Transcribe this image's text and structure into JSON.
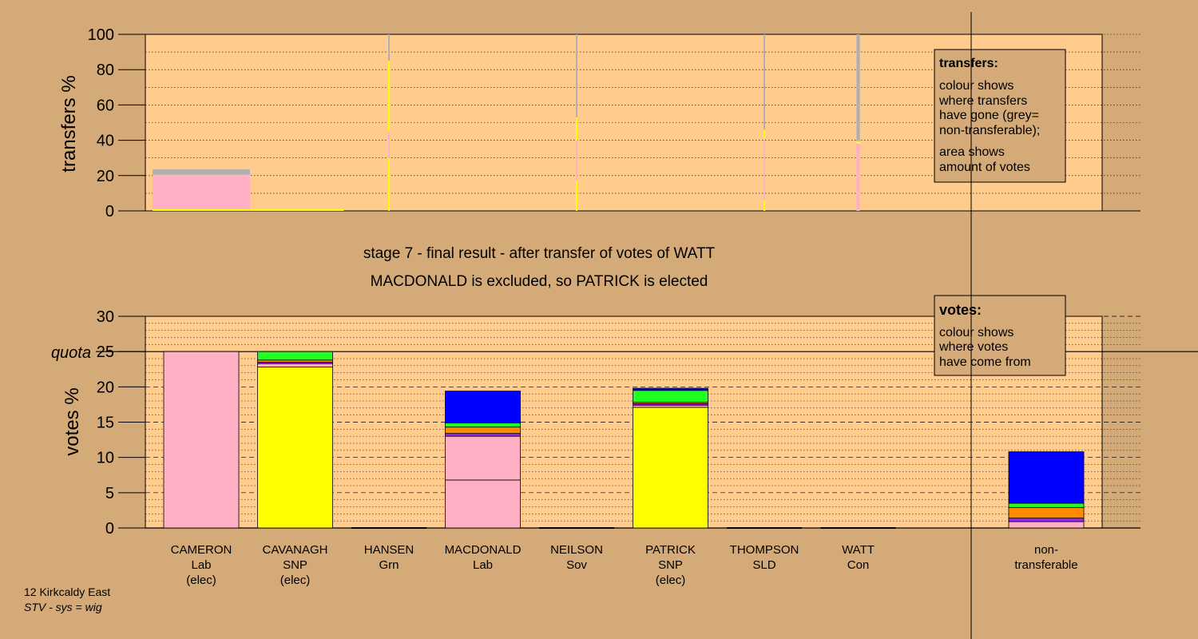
{
  "colors": {
    "background": "#d4aa78",
    "plot_bg": "#ffcc8e",
    "Lab": "#ffb0c4",
    "SNP": "#ffff00",
    "Grn": "#20ff20",
    "Sov": "#ff8c00",
    "SLD": "#a020f0",
    "Con": "#0000ff",
    "nontransferable": "#b0b0b0"
  },
  "chart_data": [
    {
      "type": "bar",
      "name": "transfers",
      "ylabel": "transfers %",
      "ylim": [
        0,
        100
      ],
      "yticks": [
        0,
        20,
        40,
        60,
        80,
        100
      ],
      "grid": true,
      "legend": {
        "position": "top-right",
        "title": "transfers:",
        "lines1": [
          "colour shows",
          "where transfers",
          "have gone (grey=",
          "non-transferable);"
        ],
        "lines2": [
          "area shows",
          "amount of votes"
        ]
      },
      "columns": [
        {
          "from": "CAMERON",
          "width_pct": 100,
          "segments": [
            {
              "party": "SNP",
              "value": 1
            },
            {
              "party": "Lab",
              "value": 19.5
            },
            {
              "party": "nontransferable",
              "value": 3
            }
          ]
        },
        {
          "from": "CAVANAGH",
          "width_pct": 100,
          "segments": [
            {
              "party": "SNP",
              "value": 1
            }
          ]
        },
        {
          "from": "HANSEN",
          "width_pct": 1.5,
          "segments": [
            {
              "party": "SNP",
              "value": 30
            },
            {
              "party": "Lab",
              "value": 15
            },
            {
              "party": "SNP",
              "value": 40
            },
            {
              "party": "nontransferable",
              "value": 15
            }
          ]
        },
        {
          "from": "NEILSON",
          "width_pct": 0.3,
          "segments": [
            {
              "party": "SNP",
              "value": 17
            },
            {
              "party": "Lab",
              "value": 23
            },
            {
              "party": "SNP",
              "value": 13
            },
            {
              "party": "nontransferable",
              "value": 47
            }
          ]
        },
        {
          "from": "THOMPSON",
          "width_pct": 1.0,
          "segments": [
            {
              "party": "SNP",
              "value": 6
            },
            {
              "party": "Lab",
              "value": 35
            },
            {
              "party": "SNP",
              "value": 5
            },
            {
              "party": "nontransferable",
              "value": 54
            }
          ]
        },
        {
          "from": "WATT",
          "width_pct": 3.5,
          "segments": [
            {
              "party": "Lab",
              "value": 38
            },
            {
              "party": "SNP",
              "value": 1.5
            },
            {
              "party": "nontransferable",
              "value": 60.5
            }
          ]
        }
      ]
    },
    {
      "type": "bar",
      "name": "votes",
      "ylabel": "votes %",
      "ylim": [
        0,
        30
      ],
      "yticks": [
        0,
        5,
        10,
        15,
        20,
        25,
        30
      ],
      "quota": 25,
      "quota_label": "quota",
      "grid": true,
      "legend": {
        "position": "top-right",
        "title": "votes:",
        "lines1": [
          "colour shows",
          "where votes",
          "have come from"
        ]
      },
      "candidates": [
        {
          "name": "CAMERON",
          "party": "Lab",
          "status": "(elec)",
          "segments": [
            {
              "party": "Lab",
              "value": 25
            }
          ]
        },
        {
          "name": "CAVANAGH",
          "party": "SNP",
          "status": "(elec)",
          "segments": [
            {
              "party": "SNP",
              "value": 22.8
            },
            {
              "party": "Lab",
              "value": 0.5
            },
            {
              "party": "SLD",
              "value": 0.2
            },
            {
              "party": "Sov",
              "value": 0.3
            },
            {
              "party": "Grn",
              "value": 1.2
            }
          ]
        },
        {
          "name": "HANSEN",
          "party": "Grn",
          "status": "",
          "segments": []
        },
        {
          "name": "MACDONALD",
          "party": "Lab",
          "status": "",
          "segments": [
            {
              "party": "Lab",
              "value": 6.8
            },
            {
              "party": "Lab",
              "value": 6.2
            },
            {
              "party": "SLD",
              "value": 0.4
            },
            {
              "party": "Sov",
              "value": 0.9
            },
            {
              "party": "Grn",
              "value": 0.6
            },
            {
              "party": "Con",
              "value": 4.5
            }
          ]
        },
        {
          "name": "NEILSON",
          "party": "Sov",
          "status": "",
          "segments": []
        },
        {
          "name": "PATRICK",
          "party": "SNP",
          "status": "(elec)",
          "segments": [
            {
              "party": "SNP",
              "value": 17.1
            },
            {
              "party": "Lab",
              "value": 0.3
            },
            {
              "party": "SLD",
              "value": 0.2
            },
            {
              "party": "Sov",
              "value": 0.2
            },
            {
              "party": "Grn",
              "value": 1.7
            },
            {
              "party": "Con",
              "value": 0.3
            }
          ]
        },
        {
          "name": "THOMPSON",
          "party": "SLD",
          "status": "",
          "segments": []
        },
        {
          "name": "WATT",
          "party": "Con",
          "status": "",
          "segments": []
        }
      ],
      "nontransferable": {
        "label1": "non-",
        "label2": "transferable",
        "segments": [
          {
            "party": "Lab",
            "value": 0.9
          },
          {
            "party": "SLD",
            "value": 0.5
          },
          {
            "party": "Sov",
            "value": 1.5
          },
          {
            "party": "Grn",
            "value": 0.6
          },
          {
            "party": "Con",
            "value": 7.3
          }
        ]
      }
    }
  ],
  "stage_title": "stage 7 - final result - after transfer of votes of WATT",
  "stage_subtitle": "MACDONALD is excluded, so PATRICK is elected",
  "footer": {
    "line1": "12 Kirkcaldy East",
    "line2": "STV - sys = wig"
  }
}
